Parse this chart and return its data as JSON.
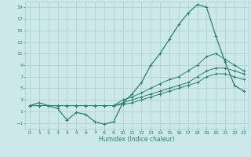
{
  "xlabel": "Humidex (Indice chaleur)",
  "x_values": [
    0,
    1,
    2,
    3,
    4,
    5,
    6,
    7,
    8,
    9,
    10,
    11,
    12,
    13,
    14,
    15,
    16,
    17,
    18,
    19,
    20,
    21,
    22,
    23
  ],
  "line_main": [
    2,
    2.5,
    2,
    1.5,
    -0.5,
    0.8,
    0.5,
    -0.8,
    -1.2,
    -0.8,
    2.5,
    4,
    6,
    9,
    11,
    13.5,
    16,
    18,
    19.5,
    19,
    14,
    9.5,
    5.5,
    4.5
  ],
  "line_upper": [
    2,
    2,
    2,
    2,
    2,
    2,
    2,
    2,
    2,
    2,
    3,
    3.5,
    4.2,
    5,
    5.8,
    6.5,
    7,
    8,
    9,
    10.5,
    11,
    10,
    9,
    8
  ],
  "line_mid1": [
    2,
    2,
    2,
    2,
    2,
    2,
    2,
    2,
    2,
    2,
    2.5,
    3,
    3.5,
    4,
    4.5,
    5,
    5.5,
    6,
    7,
    8,
    8.5,
    8.5,
    8,
    7.5
  ],
  "line_lower": [
    2,
    2,
    2,
    2,
    2,
    2,
    2,
    2,
    2,
    2,
    2.2,
    2.5,
    3,
    3.5,
    4,
    4.5,
    5,
    5.5,
    6,
    7,
    7.5,
    7.5,
    7,
    6.5
  ],
  "line_color": "#2a7f6e",
  "bg_color": "#cce8ea",
  "grid_color": "#aacdd0",
  "ylim": [
    -2,
    20
  ],
  "yticks": [
    -1,
    1,
    3,
    5,
    7,
    9,
    11,
    13,
    15,
    17,
    19
  ],
  "xticks": [
    0,
    1,
    2,
    3,
    4,
    5,
    6,
    7,
    8,
    9,
    10,
    11,
    12,
    13,
    14,
    15,
    16,
    17,
    18,
    19,
    20,
    21,
    22,
    23
  ]
}
